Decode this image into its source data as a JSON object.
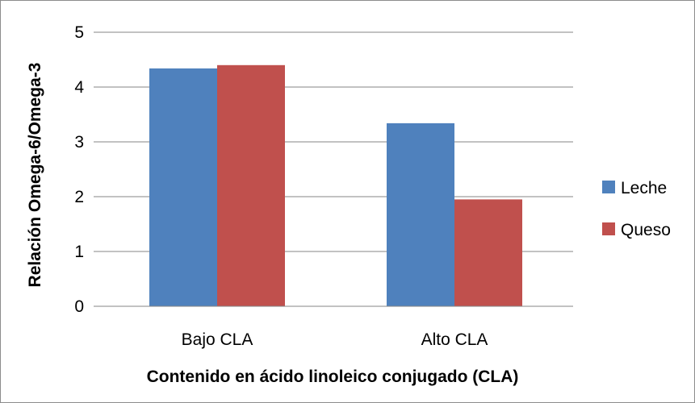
{
  "chart_data": {
    "type": "bar",
    "categories": [
      "Bajo CLA",
      "Alto CLA"
    ],
    "series": [
      {
        "name": "Leche",
        "values": [
          4.34,
          3.34
        ],
        "color": "#4f81bd"
      },
      {
        "name": "Queso",
        "values": [
          4.4,
          1.95
        ],
        "color": "#c0504d"
      }
    ],
    "xlabel": "Contenido en ácido linoleico conjugado (CLA)",
    "ylabel": "Relación Omega-6/Omega-3",
    "ylim": [
      0,
      5
    ],
    "yticks": [
      0,
      1,
      2,
      3,
      4,
      5
    ],
    "grid": true,
    "legend_position": "right"
  }
}
